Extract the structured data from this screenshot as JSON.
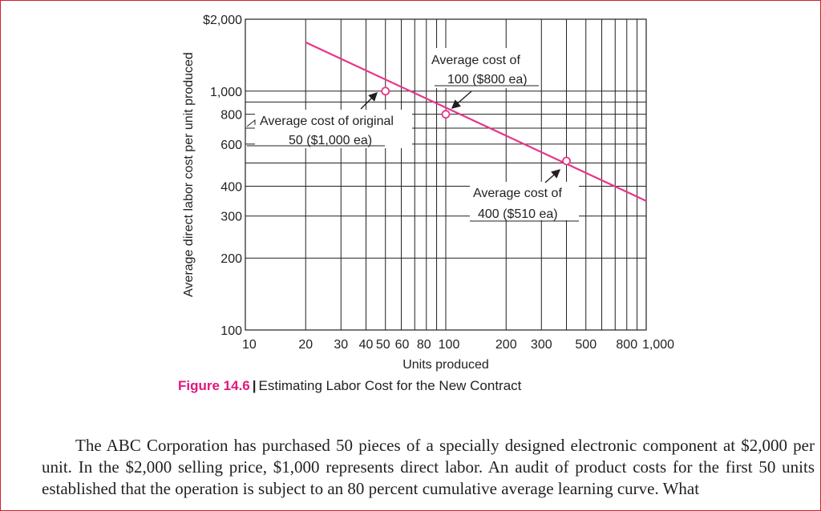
{
  "chart_data": {
    "type": "line",
    "scale": "log-log",
    "title": "Estimating Labor Cost for the New Contract",
    "figure_label": "Figure 14.6",
    "xlabel": "Units produced",
    "ylabel": "Average direct labor cost per unit produced",
    "xlim": [
      10,
      1000
    ],
    "ylim": [
      100,
      2000
    ],
    "x_ticks": [
      10,
      20,
      30,
      40,
      50,
      60,
      80,
      100,
      200,
      300,
      500,
      800,
      1000
    ],
    "x_tick_labels": [
      "10",
      "20",
      "30",
      "40",
      "50",
      "60",
      "80",
      "100",
      "200",
      "300",
      "500",
      "800",
      "1,000"
    ],
    "y_ticks": [
      100,
      200,
      300,
      400,
      600,
      800,
      1000,
      2000
    ],
    "y_tick_labels": [
      "100",
      "200",
      "300",
      "400",
      "600",
      "800",
      "1,000",
      "$2,000"
    ],
    "x_gridlines": [
      20,
      30,
      40,
      50,
      60,
      70,
      80,
      90,
      100,
      200,
      300,
      400,
      500,
      600,
      700,
      800,
      900,
      1000
    ],
    "y_gridlines": [
      200,
      300,
      400,
      500,
      600,
      700,
      800,
      900,
      1000
    ],
    "series": [
      {
        "name": "80% learning curve",
        "color": "#e8358a",
        "x": [
          20,
          1000
        ],
        "y": [
          1600,
          347
        ]
      }
    ],
    "points": [
      {
        "x": 50,
        "y": 1000
      },
      {
        "x": 100,
        "y": 800
      },
      {
        "x": 400,
        "y": 510
      }
    ],
    "annotations": [
      {
        "line1": "Average cost of original",
        "line2": "50 ($1,000 ea)"
      },
      {
        "line1": "Average cost of",
        "line2": "100 ($800 ea)"
      },
      {
        "line1": "Average cost of",
        "line2": "400 ($510 ea)"
      }
    ]
  },
  "body": {
    "paragraph": "The ABC Corporation has purchased 50 pieces of a specially designed electronic component at $2,000 per unit. In the $2,000 selling price, $1,000 represents direct labor. An audit of product costs for the first 50 units established that the operation is subject to an 80 percent cumulative average learning curve. What"
  }
}
